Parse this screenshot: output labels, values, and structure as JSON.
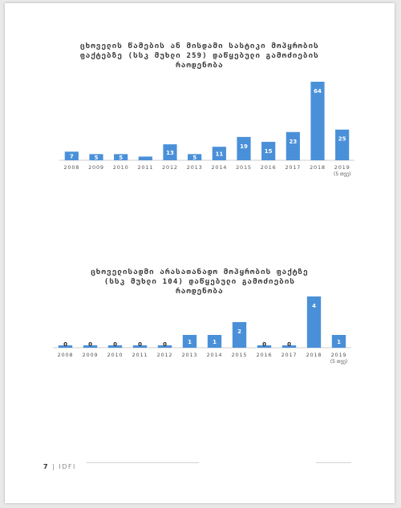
{
  "page": {
    "page_number": "7",
    "separator": "|",
    "org": "IDFI"
  },
  "colors": {
    "bar": "#4a90d9",
    "axis": "#cfcfcf",
    "tick": "#555555",
    "label": "#ffffff"
  },
  "chart_data": [
    {
      "type": "bar",
      "title_lines": [
        "ცხოველის წამების ან მისდამი სასტიკი მოპყრობის",
        "ფაქტებზე (სსკ მუხლი 259) დაწყებული გამოძიების",
        "რაოდენობა"
      ],
      "categories": [
        "2008",
        "2009",
        "2010",
        "2011",
        "2012",
        "2013",
        "2014",
        "2015",
        "2016",
        "2017",
        "2018",
        "2019"
      ],
      "last_category_note": "(5 თვე)",
      "values": [
        7,
        5,
        5,
        3,
        13,
        5,
        11,
        19,
        15,
        23,
        64,
        25
      ],
      "value_labels": [
        "7",
        "5",
        "5",
        "",
        "13",
        "5",
        "11",
        "19",
        "15",
        "23",
        "64",
        "25"
      ],
      "ylim": [
        0,
        64
      ],
      "xlabel": "",
      "ylabel": "",
      "grid": false,
      "legend": "none"
    },
    {
      "type": "bar",
      "title_lines": [
        "ცხოველისადმი არასათანადო მოპყრობის ფაქტზე",
        "(სსკ მუხლი 104) დაწყებული გამოძიების",
        "რაოდენობა"
      ],
      "categories": [
        "2008",
        "2009",
        "2010",
        "2011",
        "2012",
        "2013",
        "2014",
        "2015",
        "2016",
        "2017",
        "2018",
        "2019"
      ],
      "last_category_note": "(5 თვე)",
      "values": [
        0,
        0,
        0,
        0,
        0,
        1,
        1,
        2,
        0,
        0,
        4,
        1
      ],
      "value_labels": [
        "0",
        "0",
        "0",
        "0",
        "0",
        "1",
        "1",
        "2",
        "0",
        "0",
        "4",
        "1"
      ],
      "ylim": [
        0,
        4
      ],
      "xlabel": "",
      "ylabel": "",
      "grid": false,
      "legend": "none"
    }
  ]
}
